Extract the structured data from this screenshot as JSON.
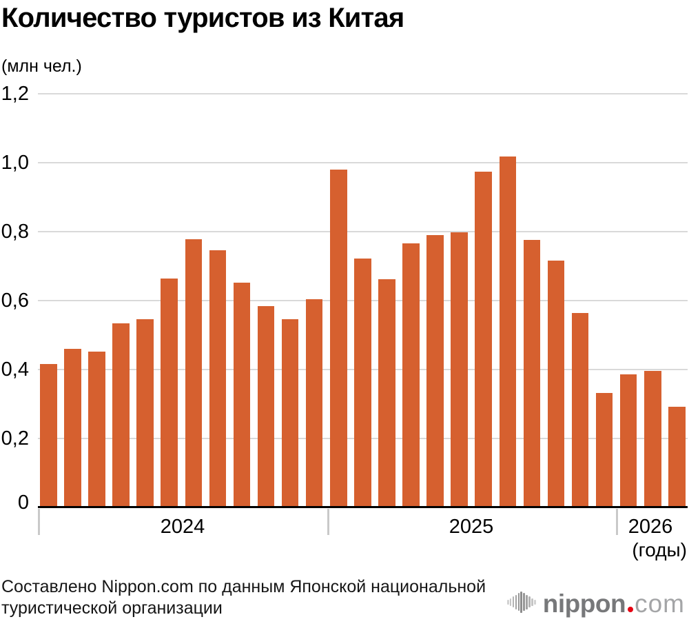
{
  "chart": {
    "title": "Количество туристов из Китая",
    "unit_label": "(млн чел.)",
    "x_axis_unit": "(годы)"
  },
  "chart_data": {
    "type": "bar",
    "title": "Количество туристов из Китая",
    "ylabel": "(млн чел.)",
    "xlabel": "(годы)",
    "ylim": [
      0,
      1.2
    ],
    "grid": true,
    "bar_color": "#d6602f",
    "gridline_color": "#d9d9d9",
    "axis_color": "#000000",
    "yticks": [
      {
        "value": 0,
        "label": "0"
      },
      {
        "value": 0.2,
        "label": "0,2"
      },
      {
        "value": 0.4,
        "label": "0,4"
      },
      {
        "value": 0.6,
        "label": "0,6"
      },
      {
        "value": 0.8,
        "label": "0,8"
      },
      {
        "value": 1.0,
        "label": "1,0"
      },
      {
        "value": 1.2,
        "label": "1,2"
      }
    ],
    "groups": [
      {
        "year": "2024",
        "values": [
          0.416,
          0.459,
          0.452,
          0.533,
          0.545,
          0.663,
          0.777,
          0.746,
          0.652,
          0.583,
          0.546,
          0.604
        ]
      },
      {
        "year": "2025",
        "values": [
          0.98,
          0.722,
          0.661,
          0.765,
          0.79,
          0.797,
          0.974,
          1.018,
          0.776,
          0.715,
          0.563,
          0.331
        ]
      },
      {
        "year": "2026",
        "values": [
          0.385,
          0.396,
          0.291
        ]
      }
    ]
  },
  "footer": {
    "source_line1": "Составлено Nippon.com по данным Японской национальной",
    "source_line2": "туристической организации",
    "logo": {
      "icon": "soundwave-icon",
      "text_bold": "nippon",
      "text_light": "com",
      "dot_color": "#e60012"
    }
  }
}
